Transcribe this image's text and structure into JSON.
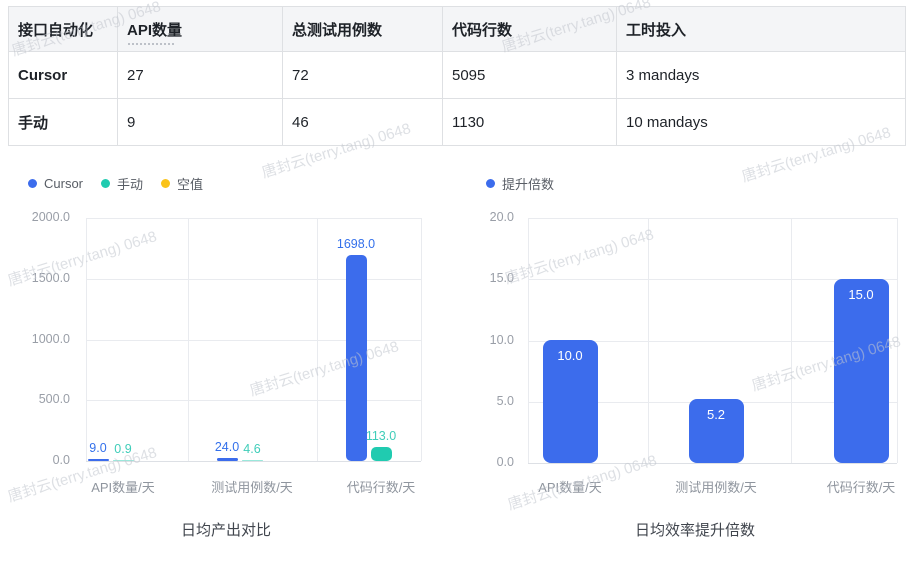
{
  "watermark": {
    "text": "唐封云(terry.tang) 0648"
  },
  "table": {
    "headers": [
      "接口自动化",
      "API数量",
      "总测试用例数",
      "代码行数",
      "工时投入"
    ],
    "rows": [
      {
        "name": "Cursor",
        "cells": [
          "27",
          "72",
          "5095",
          "3 mandays"
        ]
      },
      {
        "name": "手动",
        "cells": [
          "9",
          "46",
          "1130",
          "10 mandays"
        ]
      }
    ]
  },
  "chart_data": [
    {
      "type": "bar",
      "title": "日均产出对比",
      "categories": [
        "API数量/天",
        "测试用例数/天",
        "代码行数/天"
      ],
      "series": [
        {
          "name": "Cursor",
          "color": "#3C6CEC",
          "label_color": "#3370EB",
          "values": [
            9.0,
            24.0,
            1698.0
          ],
          "value_labels": [
            "9.0",
            "24.0",
            "1698.0"
          ]
        },
        {
          "name": "手动",
          "color": "#20CBB0",
          "label_color": "#3FCDB9",
          "values": [
            0.9,
            4.6,
            113.0
          ],
          "value_labels": [
            "0.9",
            "4.6",
            "113.0"
          ]
        },
        {
          "name": "空值",
          "color": "#FAC319",
          "label_color": "#FAC319",
          "values": [
            null,
            null,
            null
          ],
          "value_labels": []
        }
      ],
      "ylim": [
        0,
        2000
      ],
      "ytick_labels": [
        "2000.0",
        "1500.0",
        "1000.0",
        "500.0",
        "0.0"
      ],
      "legend_position": "top-left",
      "grid": true,
      "value_label_position": "above"
    },
    {
      "type": "bar",
      "title": "日均效率提升倍数",
      "categories": [
        "API数量/天",
        "测试用例数/天",
        "代码行数/天"
      ],
      "series": [
        {
          "name": "提升倍数",
          "color": "#3C6CEC",
          "label_color": "#FFFFFF",
          "values": [
            10.0,
            5.2,
            15.0
          ],
          "value_labels": [
            "10.0",
            "5.2",
            "15.0"
          ]
        }
      ],
      "ylim": [
        0,
        20
      ],
      "ytick_labels": [
        "20.0",
        "15.0",
        "10.0",
        "5.0",
        "0.0"
      ],
      "legend_position": "top-left",
      "grid": true,
      "value_label_position": "inside-top"
    }
  ]
}
